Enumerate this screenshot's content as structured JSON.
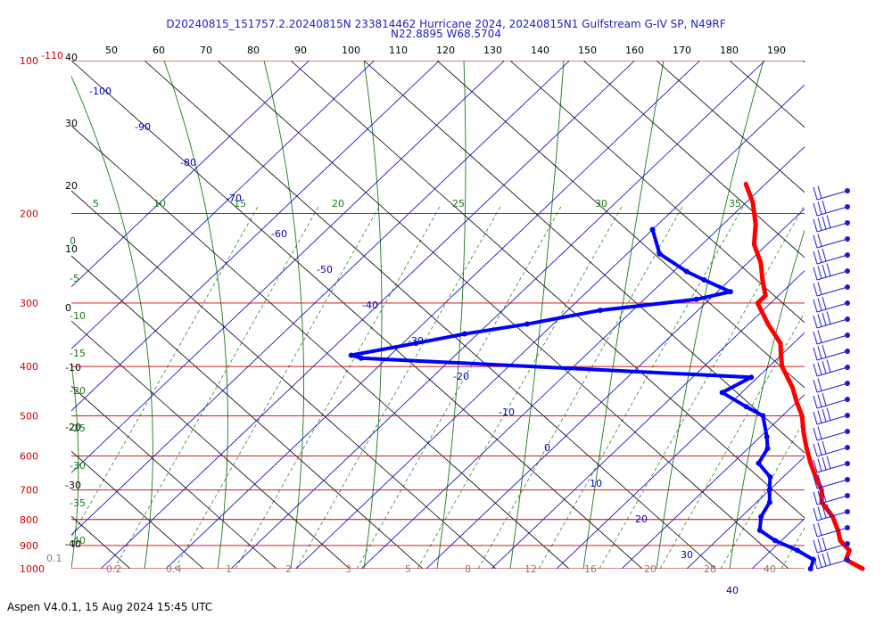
{
  "header": {
    "line1": "D20240815_151757.2.20240815N 233814462 Hurricane 2024, 20240815N1 Gulfstream G-IV SP, N49RF",
    "line2": "N22.8895 W68.5704"
  },
  "footer": "Aspen V4.0.1, 15 Aug 2024  15:45 UTC",
  "colors": {
    "temperature": "#ff0000",
    "dewpoint": "#0000ff",
    "isobar": "#c00000",
    "isotherm": "#0000c0",
    "dry_adiabat": "#000000",
    "moist_adiabat": "#1a7a1a",
    "mixing_ratio": "#2e8b2e",
    "wind": "#1a1adc"
  },
  "chart_data": {
    "type": "skew-t",
    "yaxis": {
      "scale": "log",
      "pressure_levels_hPa": [
        100,
        200,
        300,
        400,
        500,
        600,
        700,
        800,
        900,
        1000
      ],
      "labels": [
        "100",
        "200",
        "300",
        "400",
        "500",
        "600",
        "700",
        "800",
        "900",
        "1000"
      ],
      "extra_label": "-110"
    },
    "top_ticks": [
      "50",
      "60",
      "70",
      "80",
      "90",
      "100",
      "110",
      "120",
      "130",
      "140",
      "150",
      "160",
      "170",
      "180",
      "190"
    ],
    "left_ticks": [
      "40",
      "30",
      "20",
      "10",
      "0",
      "-10",
      "-20",
      "-30",
      "-40"
    ],
    "isotherm_labels": [
      "-100",
      "-90",
      "-80",
      "-70",
      "-60",
      "-50",
      "-40",
      "-30",
      "-20",
      "-10",
      "0",
      "10",
      "20",
      "30",
      "40"
    ],
    "moist_adiabat_top_labels": [
      "5",
      "10",
      "15",
      "20",
      "25",
      "30",
      "35"
    ],
    "moist_adiabat_left_labels": [
      "0",
      "-5",
      "-10",
      "-15",
      "-20",
      "-25",
      "-30",
      "-35",
      "-40"
    ],
    "mixing_ratio_labels": [
      "0.1",
      "0.2",
      "0.4",
      "1",
      "2",
      "3",
      "5",
      "8",
      "12",
      "16",
      "20",
      "28",
      "40"
    ],
    "temperature_profile": [
      {
        "p": 175,
        "t": -53
      },
      {
        "p": 190,
        "t": -49
      },
      {
        "p": 210,
        "t": -45
      },
      {
        "p": 230,
        "t": -42
      },
      {
        "p": 250,
        "t": -38
      },
      {
        "p": 270,
        "t": -35
      },
      {
        "p": 290,
        "t": -32
      },
      {
        "p": 300,
        "t": -32
      },
      {
        "p": 330,
        "t": -27
      },
      {
        "p": 360,
        "t": -22
      },
      {
        "p": 380,
        "t": -20
      },
      {
        "p": 400,
        "t": -18
      },
      {
        "p": 440,
        "t": -13
      },
      {
        "p": 470,
        "t": -10
      },
      {
        "p": 500,
        "t": -7
      },
      {
        "p": 540,
        "t": -4
      },
      {
        "p": 580,
        "t": -1
      },
      {
        "p": 620,
        "t": 2
      },
      {
        "p": 660,
        "t": 5
      },
      {
        "p": 700,
        "t": 8
      },
      {
        "p": 740,
        "t": 10
      },
      {
        "p": 790,
        "t": 14
      },
      {
        "p": 840,
        "t": 17
      },
      {
        "p": 880,
        "t": 19
      },
      {
        "p": 920,
        "t": 22
      },
      {
        "p": 960,
        "t": 23
      },
      {
        "p": 1000,
        "t": 27
      }
    ],
    "dewpoint_profile": [
      {
        "p": 215,
        "td": -60
      },
      {
        "p": 240,
        "td": -55
      },
      {
        "p": 260,
        "td": -48
      },
      {
        "p": 270,
        "td": -44
      },
      {
        "p": 285,
        "td": -38
      },
      {
        "p": 295,
        "td": -42
      },
      {
        "p": 310,
        "td": -55
      },
      {
        "p": 330,
        "td": -64
      },
      {
        "p": 345,
        "td": -72
      },
      {
        "p": 360,
        "td": -78
      },
      {
        "p": 380,
        "td": -86
      },
      {
        "p": 385,
        "td": -84
      },
      {
        "p": 420,
        "td": -21
      },
      {
        "p": 450,
        "td": -23
      },
      {
        "p": 480,
        "td": -17
      },
      {
        "p": 500,
        "td": -13
      },
      {
        "p": 550,
        "td": -9
      },
      {
        "p": 580,
        "td": -7
      },
      {
        "p": 620,
        "td": -6
      },
      {
        "p": 660,
        "td": -2
      },
      {
        "p": 700,
        "td": 0
      },
      {
        "p": 740,
        "td": 2
      },
      {
        "p": 790,
        "td": 3
      },
      {
        "p": 840,
        "td": 5
      },
      {
        "p": 880,
        "td": 9
      },
      {
        "p": 920,
        "td": 14
      },
      {
        "p": 960,
        "td": 18
      },
      {
        "p": 1000,
        "td": 19
      }
    ]
  }
}
